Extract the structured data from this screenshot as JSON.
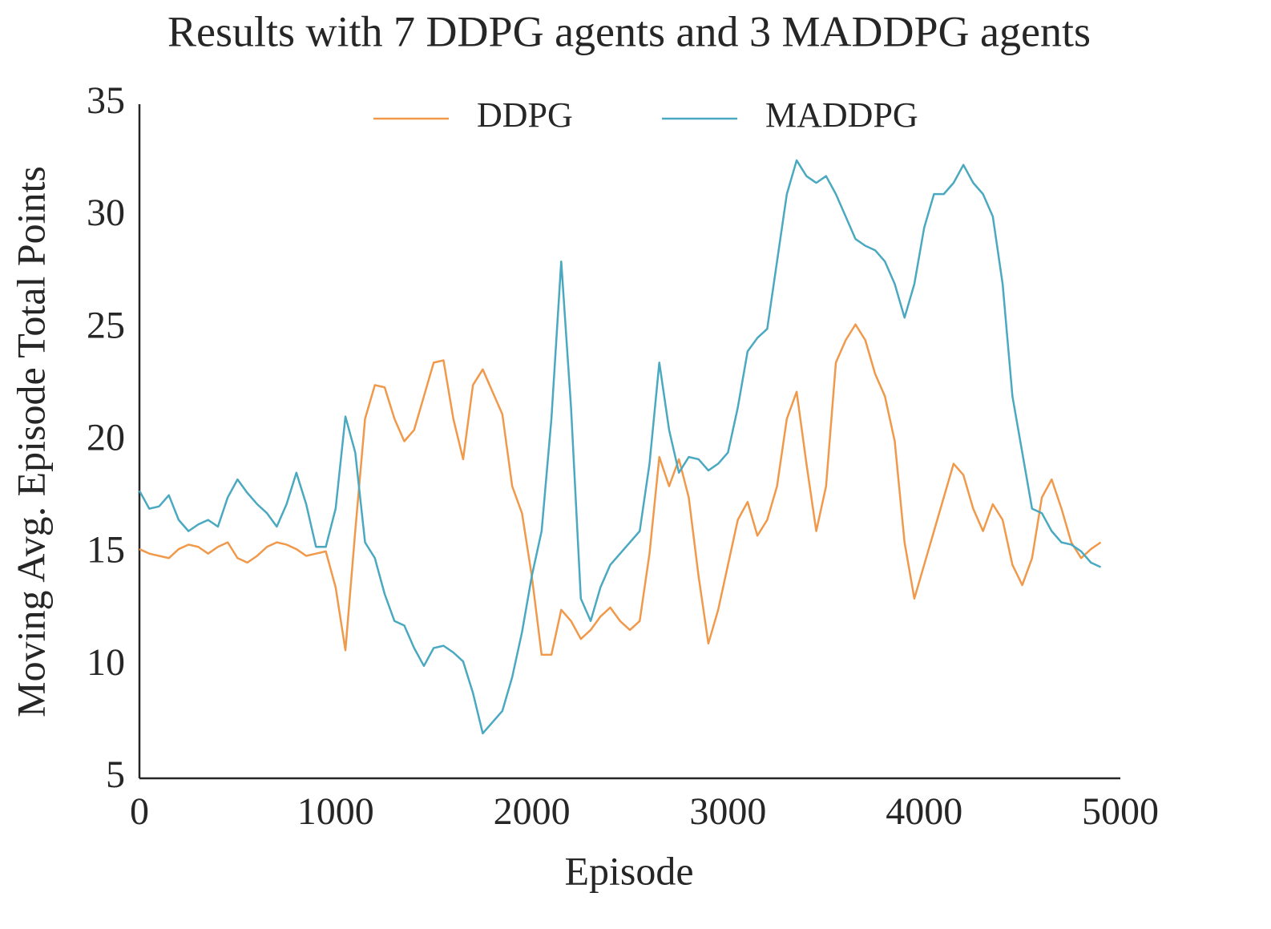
{
  "chart_data": {
    "type": "line",
    "title": "Results with 7 DDPG agents and 3 MADDPG agents",
    "x_label": "Episode",
    "y_label": "Moving Avg. Episode Total Points",
    "x": [
      0,
      50,
      100,
      150,
      200,
      250,
      300,
      350,
      400,
      450,
      500,
      550,
      600,
      650,
      700,
      750,
      800,
      850,
      900,
      950,
      1000,
      1050,
      1100,
      1150,
      1200,
      1250,
      1300,
      1350,
      1400,
      1450,
      1500,
      1550,
      1600,
      1650,
      1700,
      1750,
      1800,
      1850,
      1900,
      1950,
      2000,
      2050,
      2100,
      2150,
      2200,
      2250,
      2300,
      2350,
      2400,
      2450,
      2500,
      2550,
      2600,
      2650,
      2700,
      2750,
      2800,
      2850,
      2900,
      2950,
      3000,
      3050,
      3100,
      3150,
      3200,
      3250,
      3300,
      3350,
      3400,
      3450,
      3500,
      3550,
      3600,
      3650,
      3700,
      3750,
      3800,
      3850,
      3900,
      3950,
      4000,
      4050,
      4100,
      4150,
      4200,
      4250,
      4300,
      4350,
      4400,
      4450,
      4500,
      4550,
      4600,
      4650,
      4700,
      4750,
      4800,
      4850,
      4900
    ],
    "series": [
      {
        "name": "DDPG",
        "color": "#f0994a",
        "values": [
          15.2,
          15.0,
          14.9,
          14.8,
          15.2,
          15.4,
          15.3,
          15.0,
          15.3,
          15.5,
          14.8,
          14.6,
          14.9,
          15.3,
          15.5,
          15.4,
          15.2,
          14.9,
          15.0,
          15.1,
          13.5,
          10.7,
          16,
          21,
          22.5,
          22.4,
          21,
          20,
          20.5,
          22,
          23.5,
          23.6,
          21,
          19.2,
          22.5,
          23.2,
          22.2,
          21.2,
          18,
          16.8,
          14,
          10.5,
          10.5,
          12.5,
          12,
          11.2,
          11.6,
          12.2,
          12.6,
          12.0,
          11.6,
          12.0,
          15,
          19.3,
          18,
          19.2,
          17.5,
          14,
          11.0,
          12.5,
          14.5,
          16.5,
          17.3,
          15.8,
          16.5,
          18,
          21,
          22.2,
          19,
          16,
          18,
          23.5,
          24.5,
          25.2,
          24.5,
          23,
          22,
          20,
          15.5,
          13,
          14.5,
          16,
          17.5,
          19,
          18.5,
          17,
          16,
          17.2,
          16.5,
          14.5,
          13.6,
          14.8,
          17.5,
          18.3,
          17,
          15.5,
          14.8,
          15.2,
          15.5
        ]
      },
      {
        "name": "MADDPG",
        "color": "#4aa9c0",
        "values": [
          17.8,
          17.0,
          17.1,
          17.6,
          16.5,
          16.0,
          16.3,
          16.5,
          16.2,
          17.5,
          18.3,
          17.7,
          17.2,
          16.8,
          16.2,
          17.2,
          18.6,
          17.2,
          15.3,
          15.3,
          17,
          21.1,
          19.5,
          15.5,
          14.8,
          13.2,
          12,
          11.8,
          10.8,
          10,
          10.8,
          10.9,
          10.6,
          10.2,
          8.8,
          7,
          7.5,
          8,
          9.5,
          11.5,
          14,
          16,
          21,
          28,
          21.5,
          13,
          12,
          13.5,
          14.5,
          15,
          15.5,
          16,
          19,
          23.5,
          20.5,
          18.6,
          19.3,
          19.2,
          18.7,
          19,
          19.5,
          21.5,
          24,
          24.6,
          25,
          28,
          31,
          32.5,
          31.8,
          31.5,
          31.8,
          31,
          30,
          29,
          28.7,
          28.5,
          28,
          27,
          25.5,
          27,
          29.5,
          31,
          31,
          31.5,
          32.3,
          31.5,
          31,
          30,
          27,
          22,
          19.5,
          17,
          16.8,
          16,
          15.5,
          15.4,
          15.1,
          14.6,
          14.4
        ]
      }
    ],
    "xlim": [
      0,
      5000
    ],
    "xticks": [
      0,
      1000,
      2000,
      3000,
      4000,
      5000
    ],
    "ylim": [
      5,
      35
    ],
    "yticks": [
      5,
      10,
      15,
      20,
      25,
      30,
      35
    ],
    "grid": false,
    "legend": "upper center"
  }
}
